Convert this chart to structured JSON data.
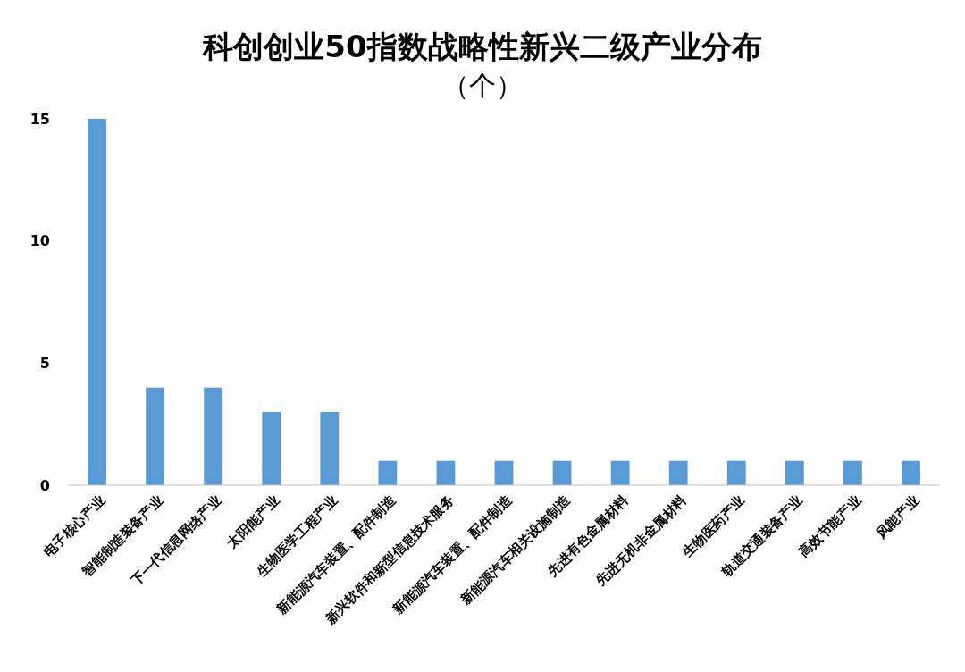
{
  "chart_data": {
    "type": "bar",
    "title": "科创创业50指数战略性新兴二级产业分布",
    "subtitle": "（个）",
    "categories": [
      "电子核心产业",
      "智能制造装备产业",
      "下一代信息网络产业",
      "太阳能产业",
      "生物医学工程产业",
      "新能源汽车装置、配件制造",
      "新兴软件和新型信息技术服务",
      "新能源汽车装置、配件制造",
      "新能源汽车相关设施制造",
      "先进有色金属材料",
      "先进无机非金属材料",
      "生物医药产业",
      "轨道交通装备产业",
      "高效节能产业",
      "风能产业"
    ],
    "values": [
      15,
      4,
      4,
      3,
      3,
      1,
      1,
      1,
      1,
      1,
      1,
      1,
      1,
      1,
      1
    ],
    "color": "#5b9bd5",
    "ylim": [
      0,
      15
    ],
    "yticks": [
      0,
      5,
      10,
      15
    ],
    "grid": false
  }
}
